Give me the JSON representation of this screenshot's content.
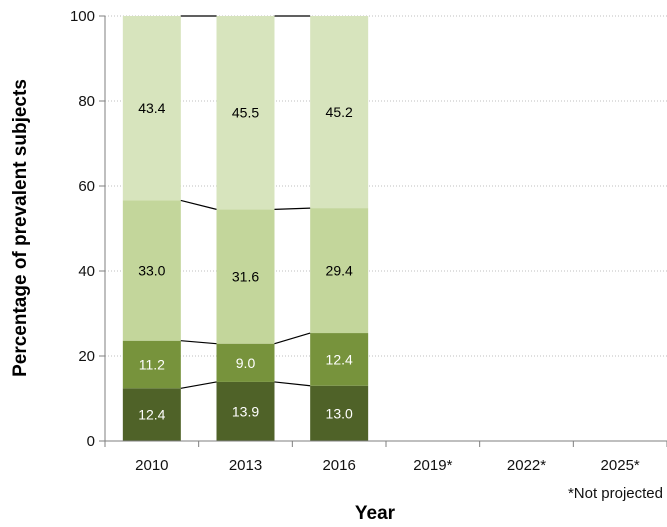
{
  "chart_data": {
    "type": "bar",
    "stacked": true,
    "categories": [
      "2010",
      "2013",
      "2016",
      "2019*",
      "2022*",
      "2025*"
    ],
    "series": [
      {
        "values": [
          12.4,
          13.9,
          13.0,
          null,
          null,
          null
        ],
        "color": "#4f6228",
        "label_color": "#ffffff"
      },
      {
        "values": [
          11.2,
          9.0,
          12.4,
          null,
          null,
          null
        ],
        "color": "#77933c",
        "label_color": "#ffffff"
      },
      {
        "values": [
          33.0,
          31.6,
          29.4,
          null,
          null,
          null
        ],
        "color": "#c3d69b",
        "label_color": "#000000"
      },
      {
        "values": [
          43.4,
          45.5,
          45.2,
          null,
          null,
          null
        ],
        "color": "#d7e4bd",
        "label_color": "#000000"
      }
    ],
    "xlabel": "Year",
    "ylabel": "Percentage of prevalent subjects",
    "ylim": [
      0,
      100
    ],
    "yticks": [
      0,
      20,
      40,
      60,
      80,
      100
    ],
    "grid": true,
    "connector_lines": true,
    "footnote": "*Not projected"
  }
}
